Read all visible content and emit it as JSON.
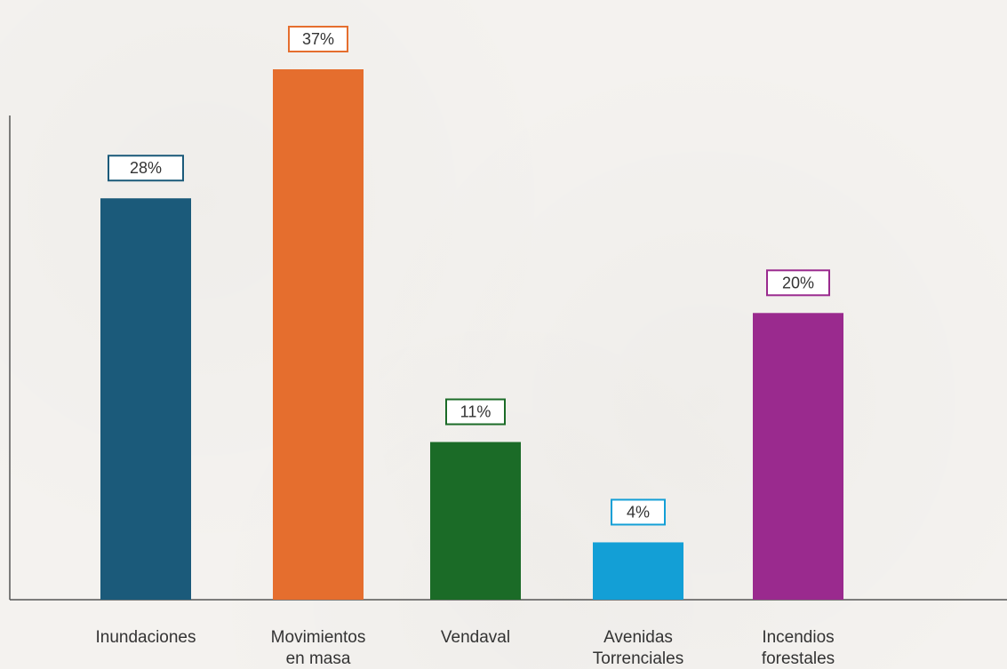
{
  "chart_data": {
    "type": "bar",
    "title": "",
    "xlabel": "",
    "ylabel": "",
    "ylim": [
      0,
      40
    ],
    "grid": false,
    "categories": [
      [
        "Inundaciones"
      ],
      [
        "Movimientos",
        "en masa"
      ],
      [
        "Vendaval"
      ],
      [
        "Avenidas",
        "Torrenciales"
      ],
      [
        "Incendios",
        "forestales"
      ]
    ],
    "values": [
      28,
      37,
      11,
      4,
      20
    ],
    "value_labels": [
      "28%",
      "37%",
      "11%",
      "4%",
      "20%"
    ],
    "colors": [
      "#1b5a7a",
      "#e56e2e",
      "#1b6b27",
      "#139fd6",
      "#9a2a8e"
    ]
  }
}
